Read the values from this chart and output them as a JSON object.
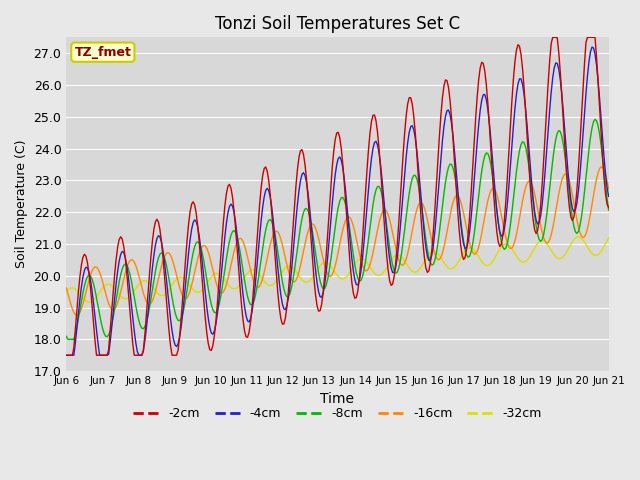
{
  "title": "Tonzi Soil Temperatures Set C",
  "xlabel": "Time",
  "ylabel": "Soil Temperature (C)",
  "ylim": [
    17.0,
    27.5
  ],
  "yticks": [
    17.0,
    18.0,
    19.0,
    20.0,
    21.0,
    22.0,
    23.0,
    24.0,
    25.0,
    26.0,
    27.0
  ],
  "xtick_labels": [
    "Jun 6",
    "Jun 7",
    "Jun 8",
    "Jun 9",
    "Jun 10",
    "Jun 11",
    "Jun 12",
    "Jun 13",
    "Jun 14",
    "Jun 15",
    "Jun 16",
    "Jun 17",
    "Jun 18",
    "Jun 19",
    "Jun 20",
    "Jun 21"
  ],
  "colors": {
    "-2cm": "#cc0000",
    "-4cm": "#2222cc",
    "-8cm": "#00bb00",
    "-16cm": "#ff8800",
    "-32cm": "#dddd00"
  },
  "legend_label": "TZ_fmet",
  "fig_facecolor": "#e8e8e8",
  "plot_bg_color": "#d8d8d8",
  "grid_color": "#ffffff"
}
